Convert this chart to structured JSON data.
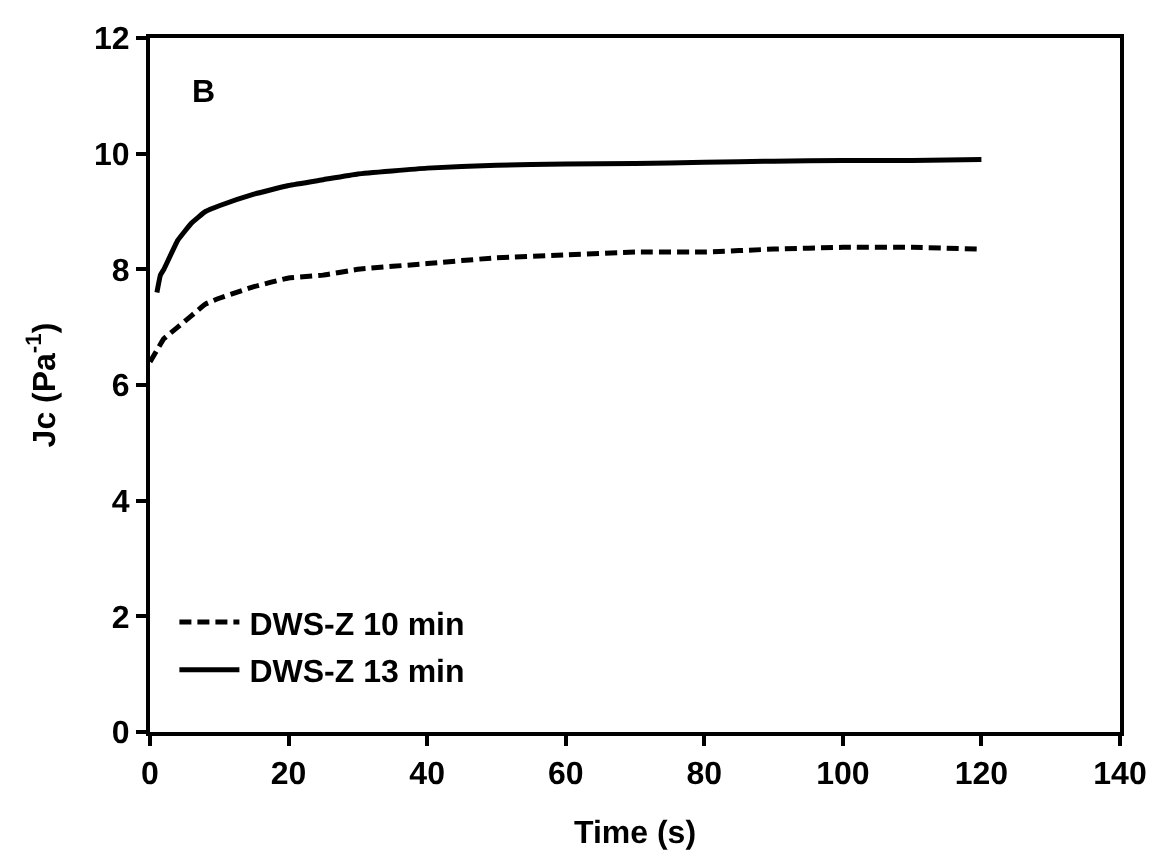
{
  "chart_data": {
    "type": "line",
    "xlabel": "Time (s)",
    "ylabel": "Jc (Pa$^{-1}$)",
    "annotations": [
      "B"
    ],
    "xlim": [
      0,
      140
    ],
    "xticks": [
      0,
      20,
      40,
      60,
      80,
      100,
      120,
      140
    ],
    "ylim": [
      0,
      12
    ],
    "yticks": [
      0,
      2,
      4,
      6,
      8,
      10,
      12
    ],
    "grid": false,
    "legend": "bottom left",
    "marker": "none",
    "series": [
      {
        "name": "DWS-Z 10 min",
        "color": "#000000",
        "line_style": "dashed",
        "x": [
          0,
          1,
          2,
          4,
          6,
          8,
          10,
          15,
          20,
          25,
          30,
          40,
          50,
          60,
          70,
          80,
          90,
          100,
          110,
          120
        ],
        "values": [
          6.4,
          6.6,
          6.8,
          7.0,
          7.2,
          7.4,
          7.5,
          7.7,
          7.85,
          7.9,
          8.0,
          8.1,
          8.2,
          8.25,
          8.3,
          8.3,
          8.35,
          8.38,
          8.38,
          8.35
        ]
      },
      {
        "name": "DWS-Z 13 min",
        "color": "#000000",
        "line_style": "solid",
        "x": [
          1,
          1.5,
          2,
          4,
          6,
          8,
          10,
          15,
          20,
          25,
          30,
          40,
          50,
          60,
          70,
          80,
          90,
          100,
          110,
          120
        ],
        "values": [
          7.6,
          7.9,
          8.0,
          8.5,
          8.8,
          9.0,
          9.1,
          9.3,
          9.45,
          9.55,
          9.65,
          9.75,
          9.8,
          9.82,
          9.83,
          9.85,
          9.87,
          9.88,
          9.88,
          9.9
        ]
      }
    ]
  }
}
